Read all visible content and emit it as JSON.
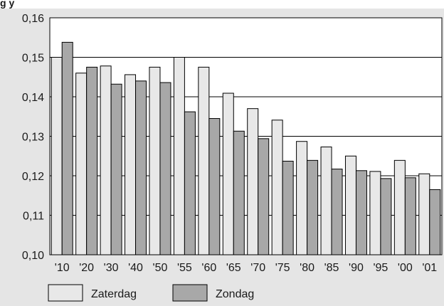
{
  "page_title_fragment": "g       y",
  "chart_data": {
    "type": "bar",
    "categories": [
      "'10",
      "'20",
      "'30",
      "'40",
      "'50",
      "'55",
      "'60",
      "'65",
      "'70",
      "'75",
      "'80",
      "'85",
      "'90",
      "'95",
      "'00",
      "'01"
    ],
    "series": [
      {
        "name": "Zaterdag",
        "color": "#e8e8e8",
        "values": [
          0.15,
          0.146,
          0.1478,
          0.1456,
          0.1475,
          0.15,
          0.1475,
          0.1409,
          0.137,
          0.1341,
          0.1287,
          0.1273,
          0.125,
          0.1211,
          0.1239,
          0.1205
        ]
      },
      {
        "name": "Zondag",
        "color": "#a8a8a8",
        "values": [
          0.1538,
          0.1475,
          0.1432,
          0.144,
          0.1436,
          0.1362,
          0.1345,
          0.1313,
          0.1294,
          0.1237,
          0.1239,
          0.1217,
          0.1213,
          0.1193,
          0.1195,
          0.1165
        ]
      }
    ],
    "ylim": [
      0.1,
      0.16
    ],
    "yticks": [
      "0,10",
      "0,11",
      "0,12",
      "0,13",
      "0,14",
      "0,15",
      "0,16"
    ],
    "grid": true,
    "legend": "bottom-left",
    "background": "#e5e5e5",
    "plot_background": "#ffffff"
  }
}
